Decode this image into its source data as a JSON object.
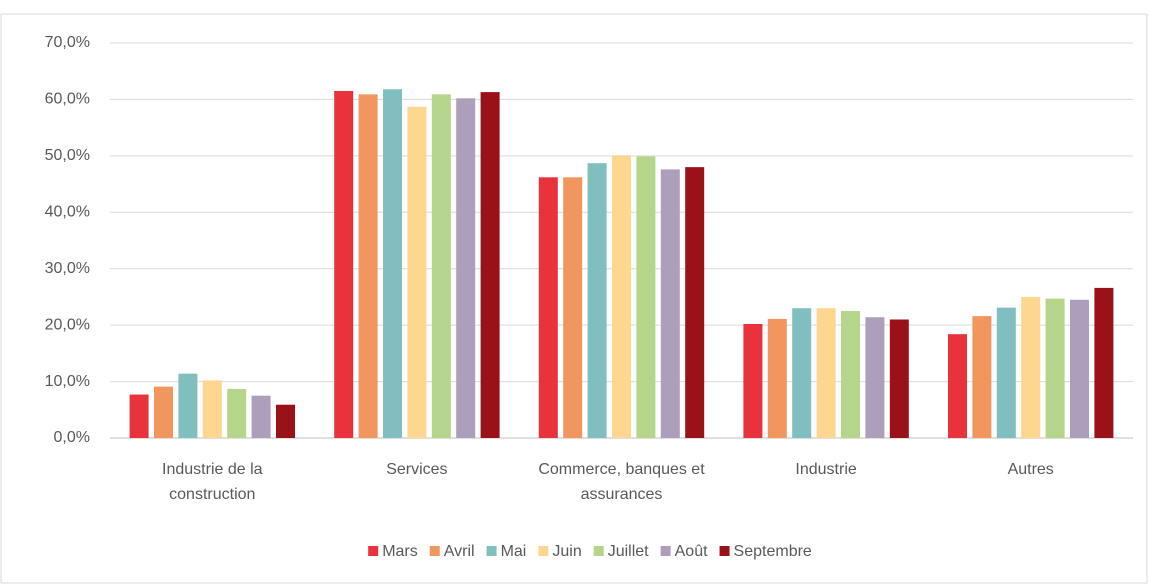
{
  "chart_data": {
    "type": "bar",
    "categories": [
      "Industrie de la construction",
      "Services",
      "Commerce, banques et assurances",
      "Industrie",
      "Autres"
    ],
    "series": [
      {
        "name": "Mars",
        "color": "#e8323c",
        "values": [
          7.7,
          61.5,
          46.2,
          20.2,
          18.4
        ]
      },
      {
        "name": "Avril",
        "color": "#f0965e",
        "values": [
          9.1,
          60.9,
          46.2,
          21.1,
          21.6
        ]
      },
      {
        "name": "Mai",
        "color": "#7fbfbf",
        "values": [
          11.4,
          61.8,
          48.7,
          23.0,
          23.1
        ]
      },
      {
        "name": "Juin",
        "color": "#fdd68f",
        "values": [
          10.2,
          58.7,
          50.1,
          23.0,
          25.0
        ]
      },
      {
        "name": "Juillet",
        "color": "#b5d68a",
        "values": [
          8.7,
          60.9,
          49.9,
          22.5,
          24.7
        ]
      },
      {
        "name": "Août",
        "color": "#ad9fbb",
        "values": [
          7.5,
          60.2,
          47.6,
          21.4,
          24.5
        ]
      },
      {
        "name": "Septembre",
        "color": "#9b1119",
        "values": [
          5.9,
          61.3,
          48.0,
          21.0,
          26.6
        ]
      }
    ],
    "ylim": [
      0,
      70
    ],
    "yticks": [
      {
        "value": 0,
        "label": "0,0%"
      },
      {
        "value": 10,
        "label": "10,0%"
      },
      {
        "value": 20,
        "label": "20,0%"
      },
      {
        "value": 30,
        "label": "30,0%"
      },
      {
        "value": 40,
        "label": "40,0%"
      },
      {
        "value": 50,
        "label": "50,0%"
      },
      {
        "value": 60,
        "label": "60,0%"
      },
      {
        "value": 70,
        "label": "70,0%"
      }
    ],
    "grid": true,
    "legend": "bottom"
  }
}
